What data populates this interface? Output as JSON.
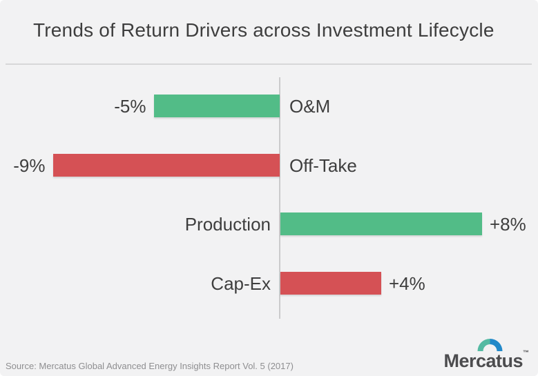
{
  "header": {
    "title": "Trends of Return Drivers across Investment Lifecycle"
  },
  "footer": {
    "source": "Source: Mercatus Global Advanced Energy Insights Report Vol. 5 (2017)",
    "logo": {
      "wordmark": "Mercatus",
      "trademark": "™"
    }
  },
  "colors": {
    "background": "#F2F2F3",
    "title_text": "#3E3E3E",
    "positive_driver_green": "#52BC87",
    "negative_driver_red": "#D55155",
    "axis_line": "#CBCBCC",
    "divider_line": "#D7D7D8",
    "source_text": "#8E8E90",
    "logo_text": "#4C4C4E",
    "logo_arch_left": "#54BAA2",
    "logo_arch_right": "#2289C9"
  },
  "chart_data": {
    "type": "bar",
    "orientation": "horizontal-diverging",
    "title": "Trends of Return Drivers across Investment Lifecycle",
    "categories": [
      "O&M",
      "Off-Take",
      "Production",
      "Cap-Ex"
    ],
    "values": [
      -5,
      -9,
      8,
      4
    ],
    "value_labels": [
      "-5%",
      "-9%",
      "+8%",
      "+4%"
    ],
    "bar_colors": [
      "#52BC87",
      "#D55155",
      "#52BC87",
      "#D55155"
    ],
    "xlabel": "",
    "ylabel": "",
    "xlim": [
      -11,
      10
    ],
    "baseline": 0,
    "grid": false,
    "legend": false,
    "notes": "green = favorable return driver trend, red = unfavorable; negative bars extend left of baseline with value label on left and category on right; positive bars extend right with category on left and value label on right"
  }
}
